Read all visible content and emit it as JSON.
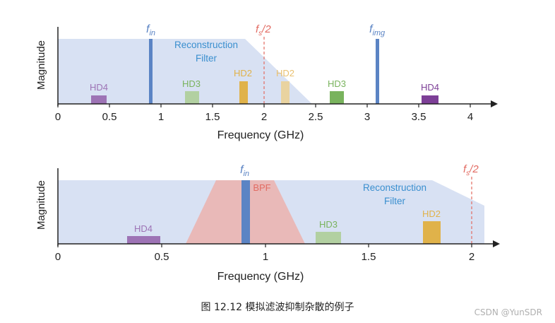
{
  "colors": {
    "filter_fill": "#d8e1f3",
    "bpf_fill": "#e9b9b8",
    "fin_bar": "#5b84c4",
    "hd2": "#e0b24a",
    "hd2_light": "#e9d3a0",
    "hd3": "#79b35d",
    "hd3_light": "#b2d0a1",
    "hd4": "#9d73b5",
    "hd4_dark": "#7d3f97",
    "filter_text": "#3a8fcf",
    "fs_text": "#e26b62",
    "bpf_text": "#e26b62",
    "axis": "#222222"
  },
  "top_panel": {
    "ylabel": "Magnitude",
    "xlabel": "Frequency (GHz)",
    "ticks": [
      "0",
      "0.5",
      "1",
      "1.5",
      "2",
      "2.5",
      "3",
      "3.5",
      "4"
    ],
    "filter_label": [
      "Reconstruction",
      "Filter"
    ],
    "fs_label": {
      "main": "f",
      "sub": "s",
      "tail": "/2"
    },
    "fin_label": {
      "main": "f",
      "sub": "in"
    },
    "fimg_label": {
      "main": "f",
      "sub": "img"
    },
    "harmonics": [
      {
        "label": "HD4",
        "freq": 0.4,
        "level": 0.18
      },
      {
        "label": "HD3",
        "freq": 1.3,
        "level": 0.25
      },
      {
        "label": "HD2",
        "freq": 1.8,
        "level": 0.48
      },
      {
        "label": "HD2",
        "freq": 2.2,
        "level": 0.48
      },
      {
        "label": "HD3",
        "freq": 2.7,
        "level": 0.27
      },
      {
        "label": "HD4",
        "freq": 3.6,
        "level": 0.18
      }
    ]
  },
  "bottom_panel": {
    "ylabel": "Magnitude",
    "xlabel": "Frequency (GHz)",
    "ticks": [
      "0",
      "0.5",
      "1",
      "1.5",
      "2"
    ],
    "filter_label": [
      "Reconstruction",
      "Filter"
    ],
    "bpf_label": "BPF",
    "fs_label": {
      "main": "f",
      "sub": "s",
      "tail": "/2"
    },
    "fin_label": {
      "main": "f",
      "sub": "in"
    },
    "harmonics": [
      {
        "label": "HD4",
        "freq": 0.4,
        "level": 0.12
      },
      {
        "label": "HD3",
        "freq": 1.3,
        "level": 0.18
      },
      {
        "label": "HD2",
        "freq": 1.8,
        "level": 0.34
      }
    ]
  },
  "caption": "图  12.12  模拟滤波抑制杂散的例子",
  "watermark": "CSDN @YunSDR"
}
